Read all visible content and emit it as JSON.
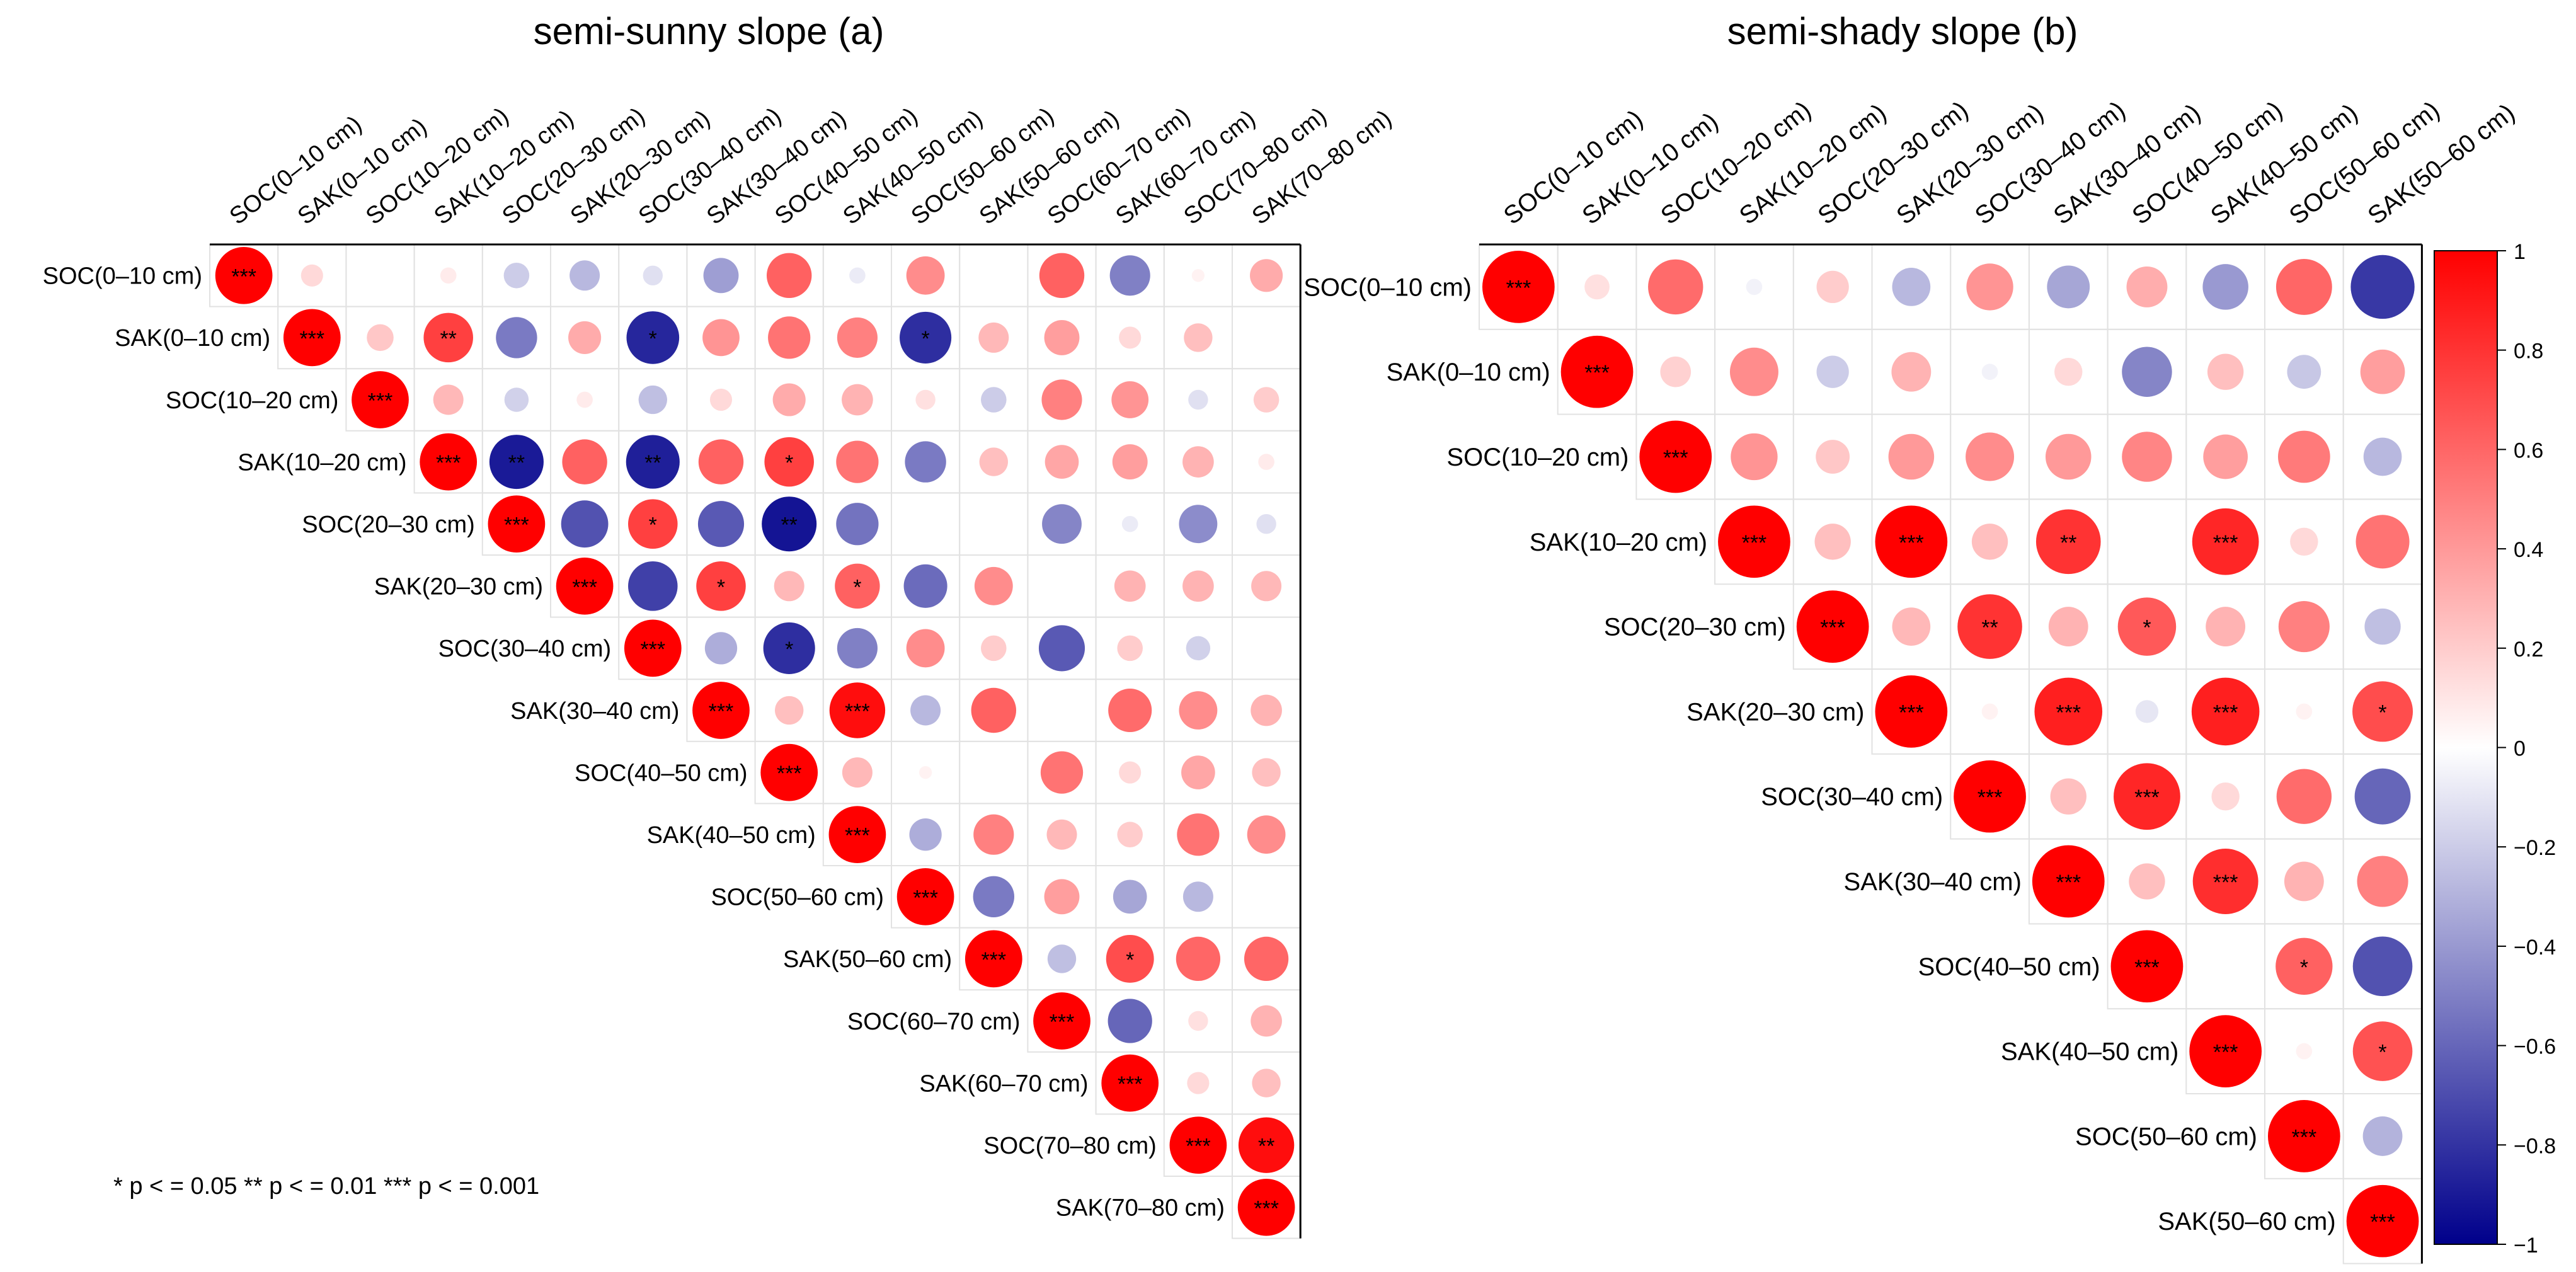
{
  "chart_data": [
    {
      "type": "heatmap",
      "title": "semi-sunny slope (a)",
      "variables": [
        "SOC(0–10 cm)",
        "SAK(0–10 cm)",
        "SOC(10–20 cm)",
        "SAK(10–20 cm)",
        "SOC(20–30 cm)",
        "SAK(20–30 cm)",
        "SOC(30–40 cm)",
        "SAK(30–40 cm)",
        "SOC(40–50 cm)",
        "SAK(40–50 cm)",
        "SOC(50–60 cm)",
        "SAK(50–60 cm)",
        "SOC(60–70 cm)",
        "SAK(60–70 cm)",
        "SOC(70–80 cm)",
        "SAK(70–80 cm)"
      ],
      "matrix": [
        [
          1,
          0.15,
          0,
          0.08,
          -0.2,
          -0.28,
          -0.12,
          -0.38,
          0.62,
          -0.08,
          0.45,
          0,
          0.62,
          -0.5,
          0.05,
          0.33
        ],
        [
          null,
          1,
          0.22,
          0.75,
          -0.52,
          0.33,
          -0.85,
          0.42,
          0.55,
          0.5,
          -0.82,
          0.28,
          0.38,
          0.15,
          0.25,
          0
        ],
        [
          null,
          null,
          1,
          0.28,
          -0.18,
          0.08,
          -0.25,
          0.15,
          0.33,
          0.3,
          0.12,
          -0.2,
          0.5,
          0.42,
          -0.12,
          0.2
        ],
        [
          null,
          null,
          null,
          1,
          -0.9,
          0.62,
          -0.88,
          0.62,
          0.75,
          0.55,
          -0.52,
          0.25,
          0.35,
          0.38,
          0.3,
          0.08
        ],
        [
          null,
          null,
          null,
          null,
          1,
          -0.68,
          0.75,
          -0.65,
          -0.92,
          -0.55,
          0,
          0,
          -0.48,
          -0.08,
          -0.45,
          -0.12
        ],
        [
          null,
          null,
          null,
          null,
          null,
          1,
          -0.75,
          0.75,
          0.28,
          0.62,
          -0.58,
          0.45,
          null,
          0.3,
          0.3,
          0.28
        ],
        [
          null,
          null,
          null,
          null,
          null,
          null,
          1,
          -0.32,
          -0.82,
          -0.5,
          0.45,
          0.2,
          -0.65,
          0.2,
          -0.18,
          null
        ],
        [
          null,
          null,
          null,
          null,
          null,
          null,
          null,
          1,
          0.25,
          0.95,
          -0.28,
          0.62,
          0,
          0.58,
          0.45,
          0.3
        ],
        [
          null,
          null,
          null,
          null,
          null,
          null,
          null,
          null,
          1,
          0.28,
          0.05,
          0,
          0.55,
          0.15,
          0.35,
          0.25
        ],
        [
          null,
          null,
          null,
          null,
          null,
          null,
          null,
          null,
          null,
          1,
          -0.32,
          0.5,
          0.28,
          0.2,
          0.55,
          0.45
        ],
        [
          null,
          null,
          null,
          null,
          null,
          null,
          null,
          null,
          null,
          null,
          1,
          -0.52,
          0.38,
          -0.35,
          -0.28,
          0
        ],
        [
          null,
          null,
          null,
          null,
          null,
          null,
          null,
          null,
          null,
          null,
          null,
          1,
          -0.25,
          0.7,
          0.6,
          0.6
        ],
        [
          null,
          null,
          null,
          null,
          null,
          null,
          null,
          null,
          null,
          null,
          null,
          null,
          1,
          -0.6,
          0.12,
          0.3
        ],
        [
          null,
          null,
          null,
          null,
          null,
          null,
          null,
          null,
          null,
          null,
          null,
          null,
          null,
          1,
          0.15,
          0.25
        ],
        [
          null,
          null,
          null,
          null,
          null,
          null,
          null,
          null,
          null,
          null,
          null,
          null,
          null,
          null,
          1,
          0.95
        ],
        [
          null,
          null,
          null,
          null,
          null,
          null,
          null,
          null,
          null,
          null,
          null,
          null,
          null,
          null,
          null,
          1
        ]
      ],
      "significance": [
        [
          "***",
          "",
          "",
          "",
          "",
          "",
          "",
          "",
          "",
          "",
          "",
          "",
          "",
          "",
          "",
          ""
        ],
        [
          "",
          "***",
          "",
          "**",
          "",
          "",
          "*",
          "",
          "",
          "",
          "*",
          "",
          "",
          "",
          "",
          ""
        ],
        [
          "",
          "",
          "***",
          "",
          "",
          "",
          "",
          "",
          "",
          "",
          "",
          "",
          "",
          "",
          "",
          ""
        ],
        [
          "",
          "",
          "",
          "***",
          "**",
          "",
          "**",
          "",
          "*",
          "",
          "",
          "",
          "",
          "",
          "",
          ""
        ],
        [
          "",
          "",
          "",
          "",
          "***",
          "",
          "*",
          "",
          "**",
          "",
          "",
          "",
          "",
          "",
          "",
          ""
        ],
        [
          "",
          "",
          "",
          "",
          "",
          "***",
          "",
          "*",
          "",
          "*",
          "",
          "",
          "",
          "",
          "",
          ""
        ],
        [
          "",
          "",
          "",
          "",
          "",
          "",
          "***",
          "",
          "*",
          "",
          "",
          "",
          "",
          "",
          "",
          ""
        ],
        [
          "",
          "",
          "",
          "",
          "",
          "",
          "",
          "***",
          "",
          "***",
          "",
          "",
          "",
          "",
          "",
          ""
        ],
        [
          "",
          "",
          "",
          "",
          "",
          "",
          "",
          "",
          "***",
          "",
          "",
          "",
          "",
          "",
          "",
          ""
        ],
        [
          "",
          "",
          "",
          "",
          "",
          "",
          "",
          "",
          "",
          "***",
          "",
          "",
          "",
          "",
          "",
          ""
        ],
        [
          "",
          "",
          "",
          "",
          "",
          "",
          "",
          "",
          "",
          "",
          "***",
          "",
          "",
          "",
          "",
          ""
        ],
        [
          "",
          "",
          "",
          "",
          "",
          "",
          "",
          "",
          "",
          "",
          "",
          "***",
          "",
          "*",
          "",
          ""
        ],
        [
          "",
          "",
          "",
          "",
          "",
          "",
          "",
          "",
          "",
          "",
          "",
          "",
          "***",
          "",
          "",
          ""
        ],
        [
          "",
          "",
          "",
          "",
          "",
          "",
          "",
          "",
          "",
          "",
          "",
          "",
          "",
          "***",
          "",
          ""
        ],
        [
          "",
          "",
          "",
          "",
          "",
          "",
          "",
          "",
          "",
          "",
          "",
          "",
          "",
          "",
          "***",
          "**"
        ],
        [
          "",
          "",
          "",
          "",
          "",
          "",
          "",
          "",
          "",
          "",
          "",
          "",
          "",
          "",
          "",
          "***"
        ]
      ]
    },
    {
      "type": "heatmap",
      "title": "semi-shady slope (b)",
      "variables": [
        "SOC(0–10 cm)",
        "SAK(0–10 cm)",
        "SOC(10–20 cm)",
        "SAK(10–20 cm)",
        "SOC(20–30 cm)",
        "SAK(20–30 cm)",
        "SOC(30–40 cm)",
        "SAK(30–40 cm)",
        "SOC(40–50 cm)",
        "SAK(40–50 cm)",
        "SOC(50–60 cm)",
        "SAK(50–60 cm)"
      ],
      "matrix": [
        [
          1,
          0.12,
          0.58,
          -0.05,
          0.2,
          -0.28,
          0.42,
          -0.35,
          0.32,
          -0.4,
          0.6,
          -0.78
        ],
        [
          null,
          1,
          0.18,
          0.45,
          -0.2,
          0.3,
          -0.05,
          0.15,
          -0.48,
          0.25,
          -0.22,
          0.38
        ],
        [
          null,
          null,
          1,
          0.42,
          0.22,
          0.4,
          0.45,
          0.4,
          0.48,
          0.38,
          0.52,
          -0.28
        ],
        [
          null,
          null,
          null,
          1,
          0.25,
          1,
          0.25,
          0.8,
          0,
          0.85,
          0.15,
          0.55
        ],
        [
          null,
          null,
          null,
          null,
          1,
          0.28,
          0.8,
          0.3,
          0.65,
          0.3,
          0.5,
          -0.25
        ],
        [
          null,
          null,
          null,
          null,
          null,
          1,
          0.05,
          0.88,
          -0.1,
          0.88,
          0.05,
          0.7
        ],
        [
          null,
          null,
          null,
          null,
          null,
          null,
          1,
          0.25,
          0.85,
          0.15,
          0.58,
          -0.6
        ],
        [
          null,
          null,
          null,
          null,
          null,
          null,
          null,
          1,
          0.25,
          0.82,
          0.3,
          0.5
        ],
        [
          null,
          null,
          null,
          null,
          null,
          null,
          null,
          null,
          1,
          0,
          0.62,
          -0.68
        ],
        [
          null,
          null,
          null,
          null,
          null,
          null,
          null,
          null,
          null,
          1,
          0.05,
          0.68
        ],
        [
          null,
          null,
          null,
          null,
          null,
          null,
          null,
          null,
          null,
          null,
          1,
          -0.3
        ],
        [
          null,
          null,
          null,
          null,
          null,
          null,
          null,
          null,
          null,
          null,
          null,
          1
        ]
      ],
      "significance": [
        [
          "***",
          "",
          "",
          "",
          "",
          "",
          "",
          "",
          "",
          "",
          "",
          ""
        ],
        [
          "",
          "***",
          "",
          "",
          "",
          "",
          "",
          "",
          "",
          "",
          "",
          ""
        ],
        [
          "",
          "",
          "***",
          "",
          "",
          "",
          "",
          "",
          "",
          "",
          "",
          ""
        ],
        [
          "",
          "",
          "",
          "***",
          "",
          "***",
          "",
          "**",
          "",
          "***",
          "",
          ""
        ],
        [
          "",
          "",
          "",
          "",
          "***",
          "",
          "**",
          "",
          "*",
          "",
          "",
          ""
        ],
        [
          "",
          "",
          "",
          "",
          "",
          "***",
          "",
          "***",
          "",
          "***",
          "",
          "*"
        ],
        [
          "",
          "",
          "",
          "",
          "",
          "",
          "***",
          "",
          "***",
          "",
          "",
          ""
        ],
        [
          "",
          "",
          "",
          "",
          "",
          "",
          "",
          "***",
          "",
          "***",
          "",
          ""
        ],
        [
          "",
          "",
          "",
          "",
          "",
          "",
          "",
          "",
          "***",
          "",
          "*",
          ""
        ],
        [
          "",
          "",
          "",
          "",
          "",
          "",
          "",
          "",
          "",
          "***",
          "",
          "*"
        ],
        [
          "",
          "",
          "",
          "",
          "",
          "",
          "",
          "",
          "",
          "",
          "***",
          ""
        ],
        [
          "",
          "",
          "",
          "",
          "",
          "",
          "",
          "",
          "",
          "",
          "",
          "***"
        ]
      ]
    }
  ],
  "colorbar": {
    "range": [
      -1,
      1
    ],
    "ticks": [
      "1",
      "0.8",
      "0.6",
      "0.4",
      "0.2",
      "0",
      "−0.2",
      "−0.4",
      "−0.6",
      "−0.8",
      "−1"
    ],
    "colors": {
      "negative": "#00008b",
      "mid": "#ffffff",
      "positive": "#ff0000"
    }
  },
  "significance_legend": "* p < = 0.05  ** p < = 0.01  *** p < = 0.001"
}
